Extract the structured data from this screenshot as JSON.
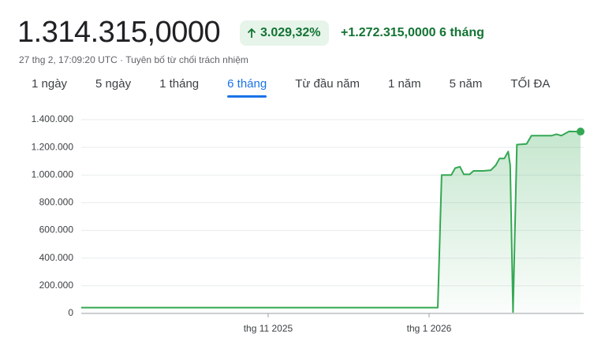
{
  "header": {
    "price": "1.314.315,0000",
    "change_percent": "3.029,32%",
    "change_value": "+1.272.315,0000 6 tháng",
    "timestamp": "27 thg 2, 17:09:20 UTC · ",
    "disclaimer": "Tuyên bố từ chối trách nhiệm"
  },
  "tabs": [
    "1 ngày",
    "5 ngày",
    "1 tháng",
    "6 tháng",
    "Từ đầu năm",
    "1 năm",
    "5 năm",
    "TỐI ĐA"
  ],
  "active_tab": 3,
  "chart_data": {
    "type": "line",
    "color": "#34a853",
    "x": [
      2025.6397,
      2026.009,
      2026.013,
      2026.023,
      2026.027,
      2026.032,
      2026.036,
      2026.042,
      2026.046,
      2026.056,
      2026.064,
      2026.069,
      2026.073,
      2026.078,
      2026.082,
      2026.084,
      2026.087,
      2026.091,
      2026.101,
      2026.106,
      2026.127,
      2026.132,
      2026.137,
      2026.145,
      2026.1569
    ],
    "values": [
      42000,
      42000,
      1000000,
      1000000,
      1050000,
      1060000,
      1005000,
      1005000,
      1030000,
      1030000,
      1035000,
      1070000,
      1120000,
      1120000,
      1170000,
      1070000,
      10000,
      1220000,
      1225000,
      1285000,
      1285000,
      1295000,
      1285000,
      1315000,
      1314315
    ],
    "xlim": [
      2025.6397,
      2026.1569
    ],
    "xticks": [
      {
        "value": 2025.8333,
        "label": "thg 11 2025"
      },
      {
        "value": 2026.0,
        "label": "thg 1 2026"
      }
    ],
    "ylim": [
      0,
      1400000
    ],
    "yticks": [
      0,
      {
        "value": 200000,
        "label": "200.000"
      },
      {
        "value": 400000,
        "label": "400.000"
      },
      {
        "value": 600000,
        "label": "600.000"
      },
      {
        "value": 800000,
        "label": "800.000"
      },
      {
        "value": 1000000,
        "label": "1.000.000"
      },
      {
        "value": 1200000,
        "label": "1.200.000"
      },
      {
        "value": 1400000,
        "label": "1.400.000"
      }
    ],
    "grid": true
  }
}
